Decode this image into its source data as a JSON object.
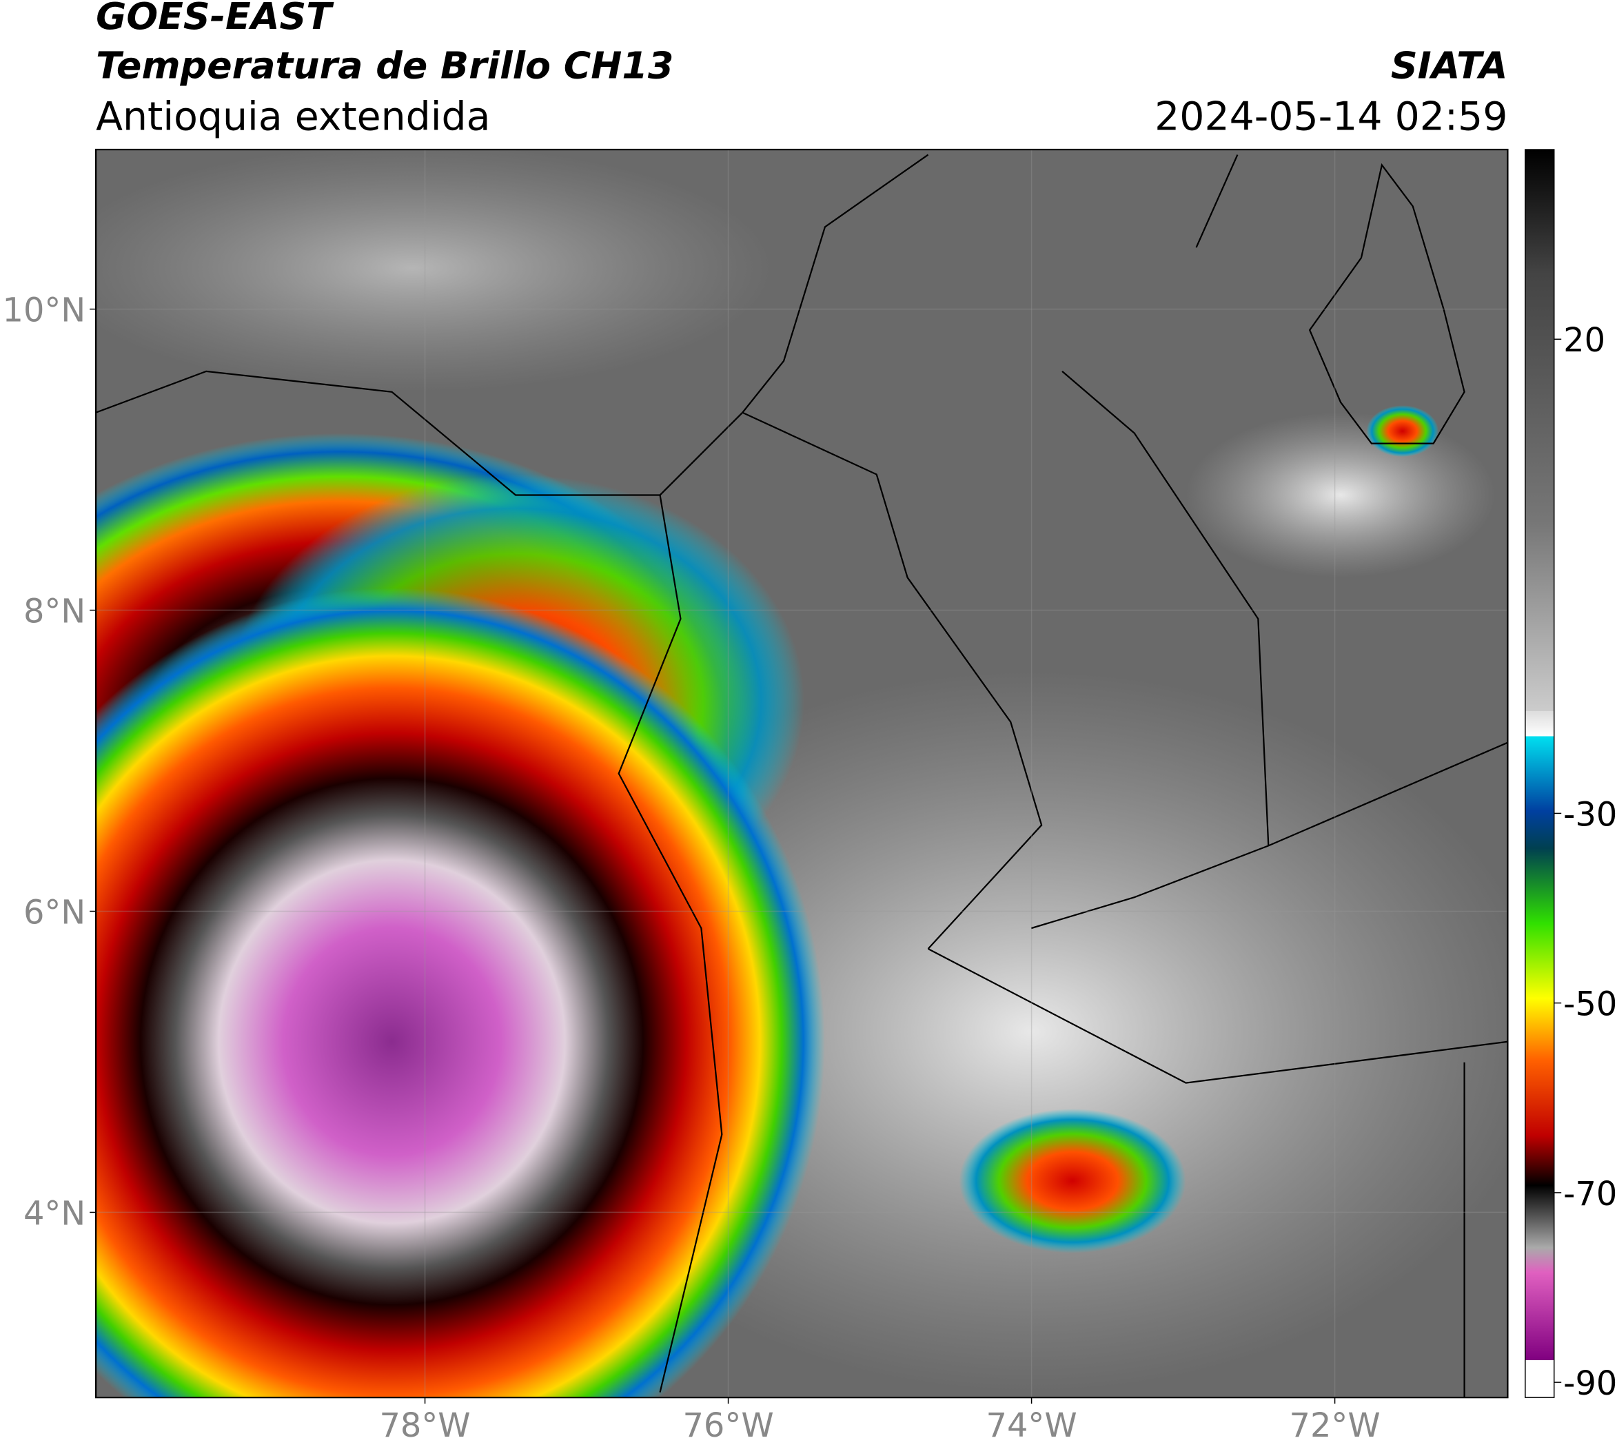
{
  "header": {
    "title": "GOES-EAST",
    "subtitle": "Temperatura de Brillo CH13",
    "region": "Antioquia extendida",
    "source": "SIATA",
    "datetime": "2024-05-14 02:59"
  },
  "map": {
    "xlim": [
      -80.17,
      -70.86
    ],
    "ylim": [
      2.77,
      11.06
    ],
    "xticks": [
      {
        "value": -78,
        "label": "78°W"
      },
      {
        "value": -76,
        "label": "76°W"
      },
      {
        "value": -74,
        "label": "74°W"
      },
      {
        "value": -72,
        "label": "72°W"
      }
    ],
    "yticks": [
      {
        "value": 10,
        "label": "10°N"
      },
      {
        "value": 8,
        "label": "8°N"
      },
      {
        "value": 6,
        "label": "6°N"
      },
      {
        "value": 4,
        "label": "4°N"
      }
    ]
  },
  "colorbar": {
    "lim": [
      -91.6,
      40
    ],
    "ticks": [
      20,
      -30,
      -50,
      -70,
      -90
    ]
  }
}
